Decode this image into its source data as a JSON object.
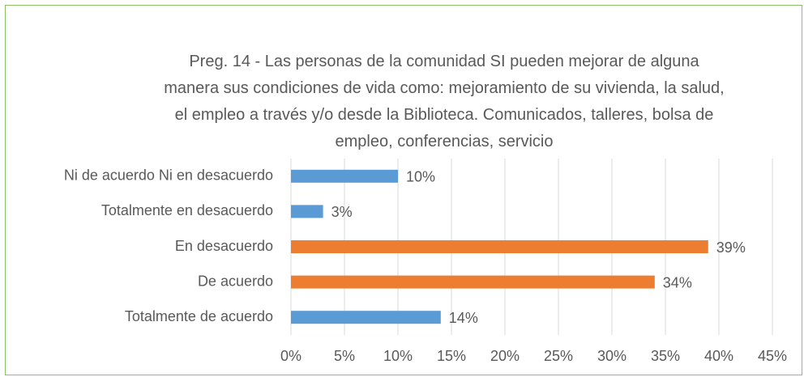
{
  "chart_data": {
    "type": "barh",
    "title": "Preg. 14 - Las personas de la comunidad  SI  pueden mejorar de alguna manera sus condiciones de vida como:  mejoramiento de su vivienda, la salud, el empleo  a través y/o desde la Biblioteca.  Comunicados, talleres, bolsa de empleo, conferencias, servicio",
    "categories": [
      "Ni de acuerdo Ni en desacuerdo",
      "Totalmente en desacuerdo",
      "En desacuerdo",
      "De acuerdo",
      "Totalmente de acuerdo"
    ],
    "values": [
      10,
      3,
      39,
      34,
      14
    ],
    "value_labels": [
      "10%",
      "3%",
      "39%",
      "34%",
      "14%"
    ],
    "colors": [
      "#5b9bd5",
      "#5b9bd5",
      "#ed7d31",
      "#ed7d31",
      "#5b9bd5"
    ],
    "xlim": [
      0,
      45
    ],
    "xticks": [
      {
        "value": 0,
        "label": "0%"
      },
      {
        "value": 5,
        "label": "5%"
      },
      {
        "value": 10,
        "label": "10%"
      },
      {
        "value": 15,
        "label": "15%"
      },
      {
        "value": 20,
        "label": "20%"
      },
      {
        "value": 25,
        "label": "25%"
      },
      {
        "value": 30,
        "label": "30%"
      },
      {
        "value": 35,
        "label": "35%"
      },
      {
        "value": 40,
        "label": "40%"
      },
      {
        "value": 45,
        "label": "45%"
      }
    ],
    "grid": true
  }
}
